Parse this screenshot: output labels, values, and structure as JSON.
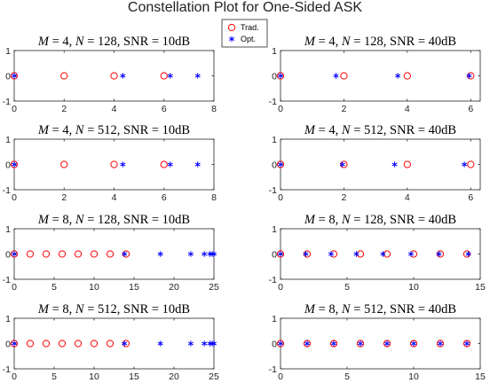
{
  "figure": {
    "title": "Constellation Plot for One-Sided ASK"
  },
  "legend": {
    "placement": "top-center",
    "entries": [
      {
        "name": "Trad.",
        "marker": "circle",
        "color": "#ff0000"
      },
      {
        "name": "Opt.",
        "marker": "asterisk",
        "color": "#0000ff"
      }
    ]
  },
  "chart_data": [
    {
      "type": "scatter",
      "title_parts": [
        "M = 4, N = 128, SNR = 10dB"
      ],
      "title": {
        "m": "4",
        "n": "128",
        "snr": "10dB"
      },
      "xlim": [
        0,
        8
      ],
      "ylim": [
        -1,
        1
      ],
      "xticks": [
        0,
        2,
        4,
        6,
        8
      ],
      "yticks": [
        -1,
        0,
        1
      ],
      "series": [
        {
          "name": "Trad.",
          "x": [
            0,
            2,
            4,
            6
          ],
          "y": [
            0,
            0,
            0,
            0
          ]
        },
        {
          "name": "Opt.",
          "x": [
            0,
            4.35,
            6.25,
            7.35
          ],
          "y": [
            0,
            0,
            0,
            0
          ]
        }
      ]
    },
    {
      "type": "scatter",
      "title": {
        "m": "4",
        "n": "128",
        "snr": "40dB"
      },
      "xlim": [
        0,
        6.3
      ],
      "ylim": [
        -1,
        1
      ],
      "xticks": [
        0,
        2,
        4,
        6
      ],
      "yticks": [
        -1,
        0,
        1
      ],
      "series": [
        {
          "name": "Trad.",
          "x": [
            0,
            2,
            4,
            6
          ],
          "y": [
            0,
            0,
            0,
            0
          ]
        },
        {
          "name": "Opt.",
          "x": [
            0,
            1.75,
            3.7,
            5.95
          ],
          "y": [
            0,
            0,
            0,
            0
          ]
        }
      ]
    },
    {
      "type": "scatter",
      "title": {
        "m": "4",
        "n": "512",
        "snr": "10dB"
      },
      "xlim": [
        0,
        8
      ],
      "ylim": [
        -1,
        1
      ],
      "xticks": [
        0,
        2,
        4,
        6,
        8
      ],
      "yticks": [
        -1,
        0,
        1
      ],
      "series": [
        {
          "name": "Trad.",
          "x": [
            0,
            2,
            4,
            6
          ],
          "y": [
            0,
            0,
            0,
            0
          ]
        },
        {
          "name": "Opt.",
          "x": [
            0,
            4.35,
            6.25,
            7.35
          ],
          "y": [
            0,
            0,
            0,
            0
          ]
        }
      ]
    },
    {
      "type": "scatter",
      "title": {
        "m": "4",
        "n": "512",
        "snr": "40dB"
      },
      "xlim": [
        0,
        6.3
      ],
      "ylim": [
        -1,
        1
      ],
      "xticks": [
        0,
        2,
        4,
        6
      ],
      "yticks": [
        -1,
        0,
        1
      ],
      "series": [
        {
          "name": "Trad.",
          "x": [
            0,
            2,
            4,
            6
          ],
          "y": [
            0,
            0,
            0,
            0
          ]
        },
        {
          "name": "Opt.",
          "x": [
            0,
            1.95,
            3.6,
            5.8
          ],
          "y": [
            0,
            0,
            0,
            0
          ]
        }
      ]
    },
    {
      "type": "scatter",
      "title": {
        "m": "8",
        "n": "128",
        "snr": "10dB"
      },
      "xlim": [
        0,
        25
      ],
      "ylim": [
        -1,
        1
      ],
      "xticks": [
        0,
        5,
        10,
        15,
        20,
        25
      ],
      "yticks": [
        -1,
        0,
        1
      ],
      "series": [
        {
          "name": "Trad.",
          "x": [
            0,
            2,
            4,
            6,
            8,
            10,
            12,
            14
          ],
          "y": [
            0,
            0,
            0,
            0,
            0,
            0,
            0,
            0
          ]
        },
        {
          "name": "Opt.",
          "x": [
            0,
            13.8,
            18.3,
            22.1,
            23.8,
            24.5,
            24.8,
            25
          ],
          "y": [
            0,
            0,
            0,
            0,
            0,
            0,
            0,
            0
          ]
        }
      ]
    },
    {
      "type": "scatter",
      "title": {
        "m": "8",
        "n": "128",
        "snr": "40dB"
      },
      "xlim": [
        0,
        15
      ],
      "ylim": [
        -1,
        1
      ],
      "xticks": [
        0,
        5,
        10,
        15
      ],
      "yticks": [
        -1,
        0,
        1
      ],
      "series": [
        {
          "name": "Trad.",
          "x": [
            0,
            2,
            4,
            6,
            8,
            10,
            12,
            14
          ],
          "y": [
            0,
            0,
            0,
            0,
            0,
            0,
            0,
            0
          ]
        },
        {
          "name": "Opt.",
          "x": [
            0,
            1.9,
            3.8,
            5.7,
            7.7,
            9.8,
            11.9,
            14.1
          ],
          "y": [
            0,
            0,
            0,
            0,
            0,
            0,
            0,
            0
          ]
        }
      ]
    },
    {
      "type": "scatter",
      "title": {
        "m": "8",
        "n": "512",
        "snr": "10dB"
      },
      "xlim": [
        0,
        25
      ],
      "ylim": [
        -1,
        1
      ],
      "xticks": [
        0,
        5,
        10,
        15,
        20,
        25
      ],
      "yticks": [
        -1,
        0,
        1
      ],
      "series": [
        {
          "name": "Trad.",
          "x": [
            0,
            2,
            4,
            6,
            8,
            10,
            12,
            14
          ],
          "y": [
            0,
            0,
            0,
            0,
            0,
            0,
            0,
            0
          ]
        },
        {
          "name": "Opt.",
          "x": [
            0,
            13.8,
            18.3,
            22.1,
            23.8,
            24.5,
            24.8,
            25
          ],
          "y": [
            0,
            0,
            0,
            0,
            0,
            0,
            0,
            0
          ]
        }
      ]
    },
    {
      "type": "scatter",
      "title": {
        "m": "8",
        "n": "512",
        "snr": "40dB"
      },
      "xlim": [
        0,
        15
      ],
      "ylim": [
        -1,
        1
      ],
      "xticks": [
        0,
        5,
        10,
        15
      ],
      "yticks": [
        -1,
        0,
        1
      ],
      "series": [
        {
          "name": "Trad.",
          "x": [
            0,
            2,
            4,
            6,
            8,
            10,
            12,
            14
          ],
          "y": [
            0,
            0,
            0,
            0,
            0,
            0,
            0,
            0
          ]
        },
        {
          "name": "Opt.",
          "x": [
            0,
            2,
            4,
            6,
            8,
            10,
            12,
            14
          ],
          "y": [
            0,
            0,
            0,
            0,
            0,
            0,
            0,
            0
          ]
        }
      ]
    }
  ]
}
